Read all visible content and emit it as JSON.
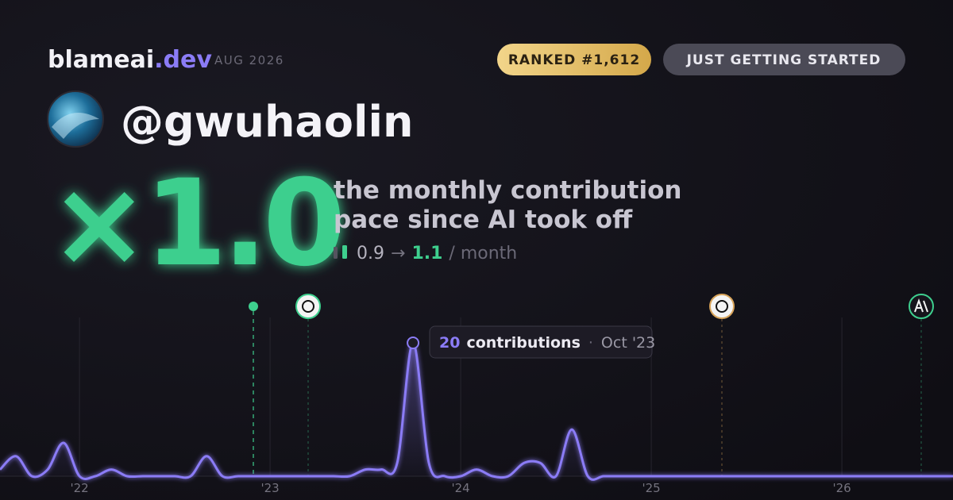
{
  "header": {
    "brand": "blameai",
    "brand_suffix": ".dev",
    "date": "AUG 2026",
    "badges": [
      "RANKED #1,612",
      "JUST GETTING STARTED"
    ]
  },
  "profile": {
    "username": "@gwuhaolin"
  },
  "summary": {
    "multiplier": "×1.0",
    "description": [
      "the monthly contribution",
      "pace since AI took off"
    ],
    "stats": {
      "before": 0.9,
      "arrow": "→",
      "after": 1.1,
      "unit": "/ month"
    }
  },
  "tooltip": {
    "unit": "contributions",
    "separator": "·",
    "date": "Oct '23"
  },
  "chart_data": {
    "type": "line",
    "color": "#8b7cf6",
    "x": [
      2021.583,
      2021.667,
      2021.75,
      2021.833,
      2021.917,
      2022,
      2022.083,
      2022.167,
      2022.25,
      2022.333,
      2022.417,
      2022.5,
      2022.583,
      2022.667,
      2022.75,
      2022.833,
      2022.917,
      2023,
      2023.083,
      2023.167,
      2023.25,
      2023.333,
      2023.417,
      2023.5,
      2023.583,
      2023.667,
      2023.75,
      2023.833,
      2023.917,
      2024,
      2024.083,
      2024.167,
      2024.25,
      2024.333,
      2024.417,
      2024.5,
      2024.583,
      2024.667,
      2024.75,
      2024.833,
      2024.917,
      2025,
      2025.083,
      2025.167,
      2025.25,
      2025.333,
      2025.417,
      2025.5,
      2025.583,
      2025.667,
      2025.75,
      2025.833,
      2025.917,
      2026,
      2026.083,
      2026.167,
      2026.25,
      2026.333,
      2026.417,
      2026.5,
      2026.583
    ],
    "values": [
      1,
      3,
      0,
      1,
      5,
      0,
      0,
      1,
      0,
      0,
      0,
      0,
      0,
      3,
      0,
      0,
      0,
      0,
      0,
      0,
      0,
      0,
      0,
      1,
      1,
      2,
      20,
      2,
      0,
      0,
      1,
      0,
      0,
      2,
      2,
      0,
      7,
      0,
      0,
      0,
      0,
      0,
      0,
      0,
      0,
      0,
      0,
      0,
      0,
      0,
      0,
      0,
      0,
      0,
      0,
      0,
      0,
      0,
      0,
      0,
      0
    ],
    "xlim": [
      2021.583,
      2026.583
    ],
    "ylim": [
      0,
      20
    ],
    "xticks": [
      {
        "value": 2022,
        "label": "'22"
      },
      {
        "value": 2023,
        "label": "'23"
      },
      {
        "value": 2024,
        "label": "'24"
      },
      {
        "value": 2025,
        "label": "'25"
      },
      {
        "value": 2026,
        "label": "'26"
      }
    ],
    "grid": true
  }
}
